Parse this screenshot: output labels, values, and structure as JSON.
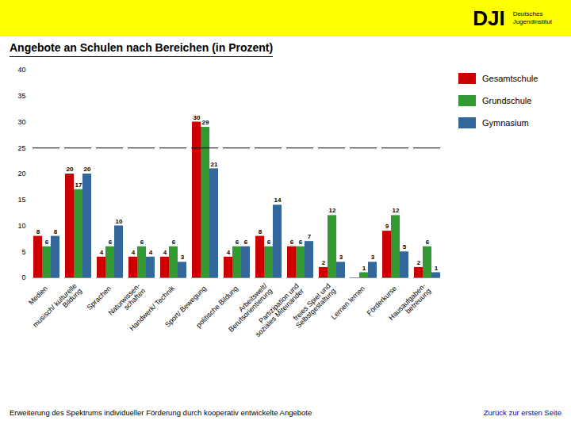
{
  "chart_data": {
    "type": "bar",
    "title": "Angebote an Schulen nach Bereichen  (in Prozent)",
    "subtitle": "Erweiterung des Spektrums individueller Förderung durch kooperativ entwickelte Angebote",
    "annotations": [
      "DJI",
      "Deutsches\nJugendinstitut",
      "Zurück zur ersten Seite"
    ],
    "categories": [
      "Medien",
      "musisch/ kulturelle\nBildung",
      "Sprachen",
      "Naturwissen-\nschaften",
      "Handwerk/ Technik",
      "Sport/ Bewegung",
      "politische Bildung",
      "Arbeitswelt/\nBerufsorientierung",
      "Partizipation und\nsoziales Miteinander",
      "freies Spiel und\nSelbstgestaltung",
      "Lernen lernen",
      "Förderkurse",
      "Hausaufgaben-\nbetreuung"
    ],
    "series": [
      {
        "name": "Gesamtschule",
        "color": "#CC0000",
        "values": [
          8,
          20,
          4,
          4,
          4,
          30,
          4,
          8,
          6,
          2,
          0,
          9,
          2
        ]
      },
      {
        "name": "Grundschule",
        "color": "#339933",
        "values": [
          6,
          17,
          6,
          6,
          6,
          29,
          6,
          6,
          6,
          12,
          1,
          12,
          6
        ]
      },
      {
        "name": "Gymnasium",
        "color": "#336699",
        "values": [
          8,
          20,
          10,
          4,
          3,
          21,
          6,
          14,
          7,
          3,
          3,
          5,
          1
        ]
      }
    ],
    "reference_line": 25,
    "ylim": [
      0,
      40
    ],
    "yticks": [
      0,
      5,
      10,
      15,
      20,
      25,
      30,
      35,
      40
    ],
    "grid": false,
    "legend": "right",
    "data_labels": true
  }
}
